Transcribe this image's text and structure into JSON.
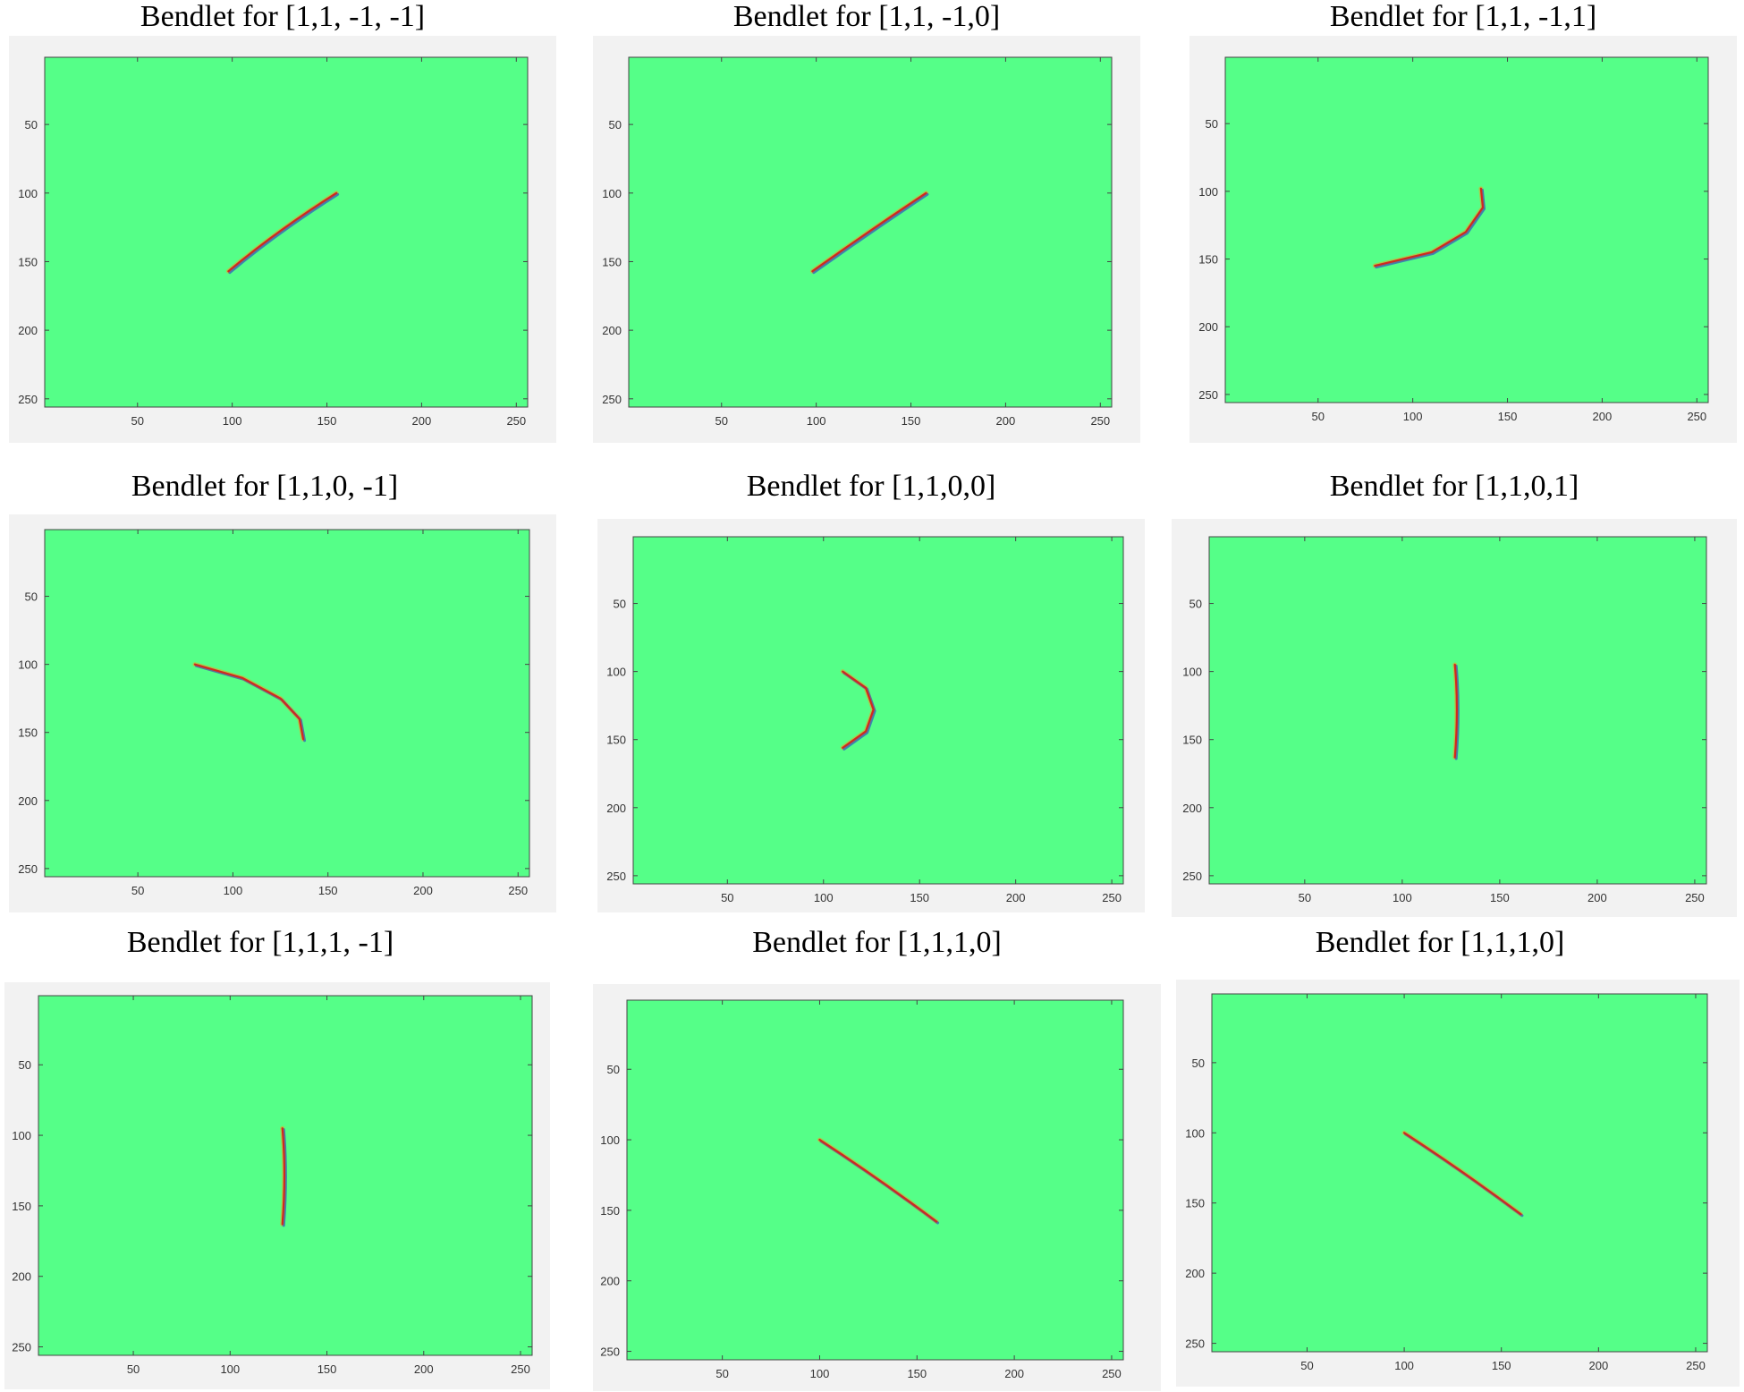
{
  "colors": {
    "plot_background": "#55ff88",
    "axes_frame": "#f2f2f2",
    "curve_red": "#d2281e",
    "curve_orange": "#f0a01e",
    "curve_blue": "#1e3cd2"
  },
  "chart_data": [
    {
      "type": "heatmap",
      "title": "Bendlet for [1,1, -1, -1]",
      "xlim": [
        1,
        256
      ],
      "ylim": [
        1,
        256
      ],
      "y_reversed": true,
      "xticks": [
        50,
        100,
        150,
        200,
        250
      ],
      "yticks": [
        50,
        100,
        150,
        200,
        250
      ],
      "curve": [
        [
          98,
          157
        ],
        [
          125,
          128
        ],
        [
          155,
          100
        ]
      ]
    },
    {
      "type": "heatmap",
      "title": "Bendlet for [1,1, -1,0]",
      "xlim": [
        1,
        256
      ],
      "ylim": [
        1,
        256
      ],
      "y_reversed": true,
      "xticks": [
        50,
        100,
        150,
        200,
        250
      ],
      "yticks": [
        50,
        100,
        150,
        200,
        250
      ],
      "curve": [
        [
          98,
          157
        ],
        [
          128,
          128
        ],
        [
          158,
          100
        ]
      ]
    },
    {
      "type": "heatmap",
      "title": "Bendlet for [1,1, -1,1]",
      "xlim": [
        1,
        256
      ],
      "ylim": [
        1,
        256
      ],
      "y_reversed": true,
      "xticks": [
        50,
        100,
        150,
        200,
        250
      ],
      "yticks": [
        50,
        100,
        150,
        200,
        250
      ],
      "curve": [
        [
          80,
          155
        ],
        [
          110,
          145
        ],
        [
          128,
          130
        ],
        [
          137,
          112
        ],
        [
          136,
          98
        ]
      ]
    },
    {
      "type": "heatmap",
      "title": "Bendlet for [1,1,0, -1]",
      "xlim": [
        1,
        256
      ],
      "ylim": [
        1,
        256
      ],
      "y_reversed": true,
      "xticks": [
        50,
        100,
        150,
        200,
        250
      ],
      "yticks": [
        50,
        100,
        150,
        200,
        250
      ],
      "curve": [
        [
          80,
          100
        ],
        [
          105,
          110
        ],
        [
          125,
          125
        ],
        [
          135,
          140
        ],
        [
          137,
          155
        ]
      ]
    },
    {
      "type": "heatmap",
      "title": "Bendlet for [1,1,0,0]",
      "xlim": [
        1,
        256
      ],
      "ylim": [
        1,
        256
      ],
      "y_reversed": true,
      "xticks": [
        50,
        100,
        150,
        200,
        250
      ],
      "yticks": [
        50,
        100,
        150,
        200,
        250
      ],
      "curve": [
        [
          110,
          100
        ],
        [
          122,
          112
        ],
        [
          126,
          128
        ],
        [
          122,
          144
        ],
        [
          110,
          156
        ]
      ]
    },
    {
      "type": "heatmap",
      "title": "Bendlet for [1,1,0,1]",
      "xlim": [
        1,
        256
      ],
      "ylim": [
        1,
        256
      ],
      "y_reversed": true,
      "xticks": [
        50,
        100,
        150,
        200,
        250
      ],
      "yticks": [
        50,
        100,
        150,
        200,
        250
      ],
      "curve": [
        [
          127,
          95
        ],
        [
          128,
          128
        ],
        [
          127,
          163
        ]
      ]
    },
    {
      "type": "heatmap",
      "title": "Bendlet for [1,1,1, -1]",
      "xlim": [
        1,
        256
      ],
      "ylim": [
        1,
        256
      ],
      "y_reversed": true,
      "xticks": [
        50,
        100,
        150,
        200,
        250
      ],
      "yticks": [
        50,
        100,
        150,
        200,
        250
      ],
      "curve": [
        [
          127,
          95
        ],
        [
          128,
          128
        ],
        [
          127,
          163
        ]
      ]
    },
    {
      "type": "heatmap",
      "title": "Bendlet for [1,1,1,0]",
      "xlim": [
        1,
        256
      ],
      "ylim": [
        1,
        256
      ],
      "y_reversed": true,
      "xticks": [
        50,
        100,
        150,
        200,
        250
      ],
      "yticks": [
        50,
        100,
        150,
        200,
        250
      ],
      "curve": [
        [
          100,
          100
        ],
        [
          130,
          128
        ],
        [
          160,
          158
        ]
      ]
    },
    {
      "type": "heatmap",
      "title": "Bendlet for [1,1,1,0]",
      "xlim": [
        1,
        256
      ],
      "ylim": [
        1,
        256
      ],
      "y_reversed": true,
      "xticks": [
        50,
        100,
        150,
        200,
        250
      ],
      "yticks": [
        50,
        100,
        150,
        200,
        250
      ],
      "curve": [
        [
          100,
          100
        ],
        [
          130,
          128
        ],
        [
          160,
          158
        ]
      ]
    }
  ]
}
